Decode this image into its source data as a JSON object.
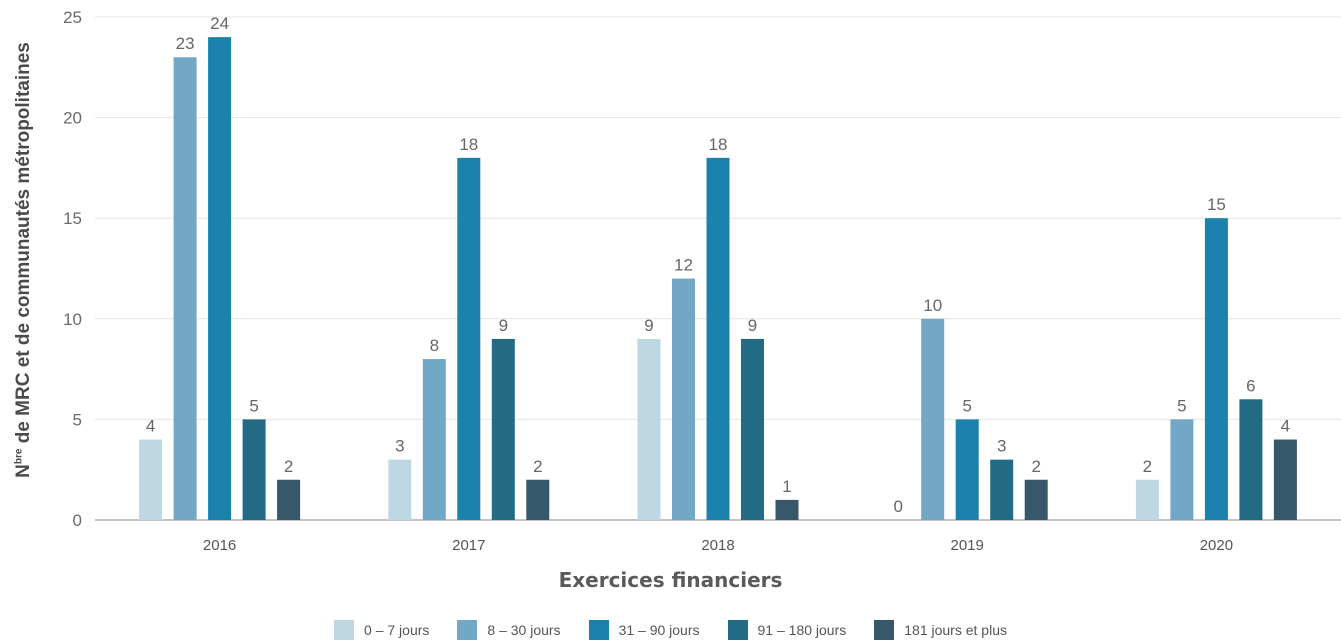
{
  "chart_data": {
    "type": "bar",
    "categories": [
      "2016",
      "2017",
      "2018",
      "2019",
      "2020"
    ],
    "series": [
      {
        "name": "0 – 7 jours",
        "color": "#bdd7e3",
        "values": [
          4,
          3,
          9,
          0,
          2
        ]
      },
      {
        "name": "8 – 30 jours",
        "color": "#72a8c6",
        "values": [
          23,
          8,
          12,
          10,
          5
        ]
      },
      {
        "name": "31 – 90 jours",
        "color": "#1a82ac",
        "values": [
          24,
          18,
          18,
          5,
          15
        ]
      },
      {
        "name": "91 – 180 jours",
        "color": "#236b85",
        "values": [
          5,
          9,
          9,
          3,
          6
        ]
      },
      {
        "name": "181 jours et plus",
        "color": "#37576a",
        "values": [
          2,
          2,
          1,
          2,
          4
        ]
      }
    ],
    "ylim": [
      0,
      25
    ],
    "yticks": [
      0,
      5,
      10,
      15,
      20,
      25
    ],
    "ylabel_prefix": "N",
    "ylabel_sup": "bre",
    "ylabel_rest": " de MRC et de communautés métropolitaines",
    "xlabel": "Exercices financiers",
    "grid": true,
    "legend_position": "bottom"
  }
}
